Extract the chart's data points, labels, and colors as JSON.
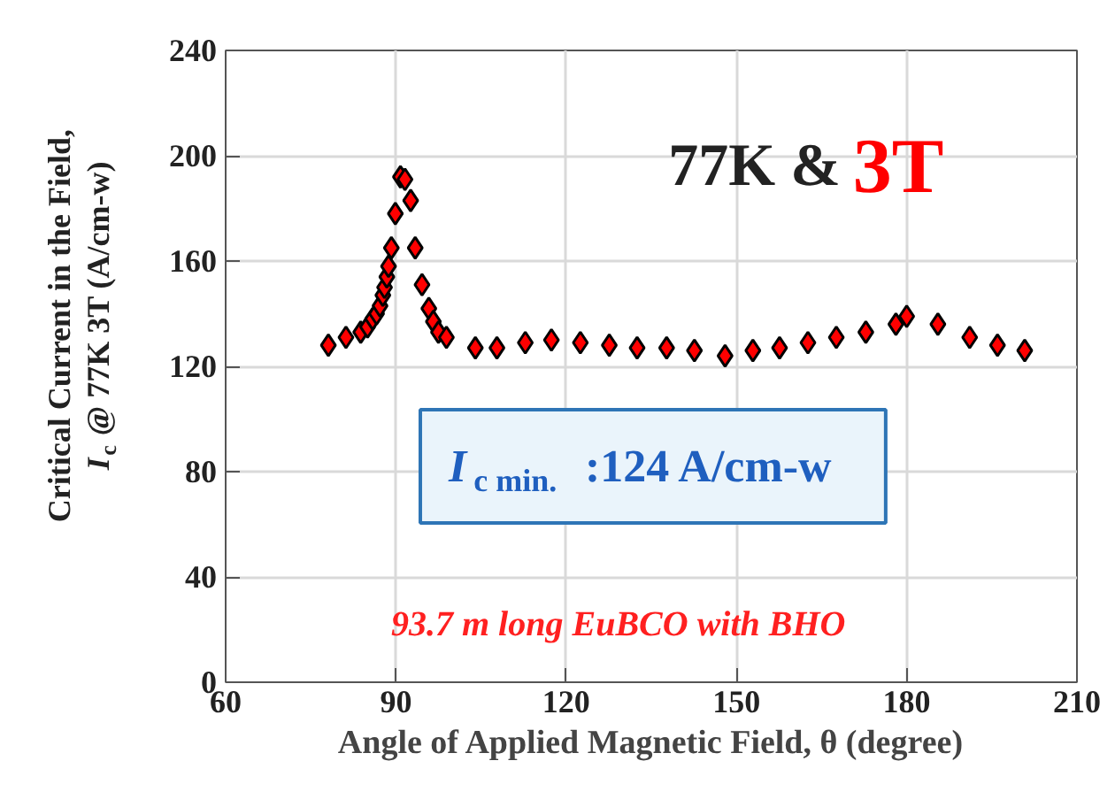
{
  "chart_data": {
    "type": "scatter",
    "xlabel": "Angle of Applied Magnetic Field, θ (degree)",
    "ylabel": "Critical  Current in the Field,\nI$_{c}$ @ 77K 3T (A/cm-w)",
    "x": [
      78.1,
      81.2,
      83.8,
      85.0,
      85.9,
      86.6,
      87.2,
      87.7,
      88.0,
      88.4,
      88.7,
      89.2,
      89.9,
      90.8,
      91.6,
      92.6,
      93.4,
      94.6,
      95.8,
      96.6,
      97.5,
      98.9,
      104.0,
      107.8,
      112.8,
      117.4,
      122.5,
      127.6,
      132.5,
      137.7,
      142.6,
      148.0,
      152.9,
      157.6,
      162.6,
      167.6,
      172.8,
      178.1,
      180.0,
      185.5,
      191.1,
      196.0,
      200.8
    ],
    "series": [
      {
        "color": "#ff0000",
        "values": [
          128,
          131,
          133,
          135,
          138,
          140,
          143,
          147,
          150,
          154,
          158,
          165,
          178,
          192,
          191,
          183,
          165,
          151,
          142,
          137,
          133,
          131,
          127,
          127,
          129,
          130,
          129,
          128,
          127,
          127,
          126,
          124,
          126,
          127,
          129,
          131,
          133,
          136,
          139,
          136,
          131,
          128,
          126
        ]
      }
    ],
    "xlim": [
      60,
      210
    ],
    "xticks": [
      60,
      90,
      120,
      150,
      180,
      210
    ],
    "ylim": [
      0,
      240
    ],
    "yticks": [
      0,
      40,
      80,
      120,
      160,
      200,
      240
    ],
    "grid": true,
    "marker": "diamond",
    "annotations": [
      "77K &",
      "3T",
      "I$_{c min.}$ :124 A/cm-w",
      "93.7 m long EuBCO with BHO"
    ]
  }
}
